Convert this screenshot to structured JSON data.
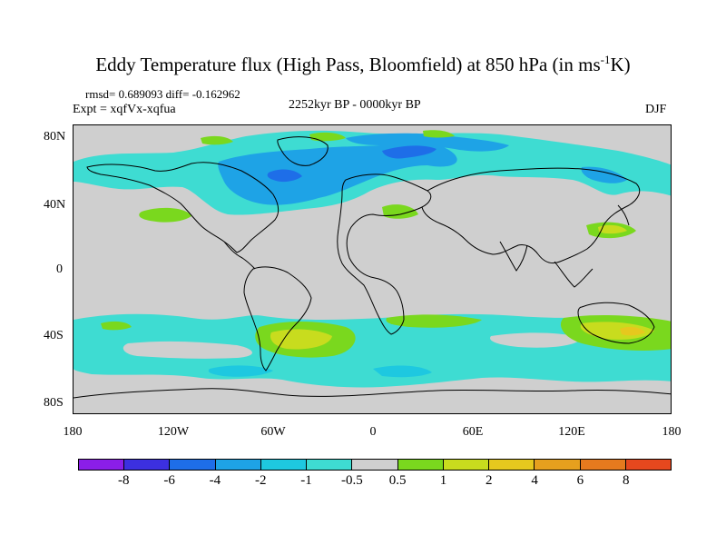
{
  "title_main": "Eddy Temperature flux (High Pass, Bloomfield) at 850 hPa (in ms",
  "title_sup": "-1",
  "title_end": "K)",
  "stats_line": "rmsd= 0.689093 diff= -0.162962",
  "expt_line": "Expt = xqfVx-xqfua",
  "period": "2252kyr BP - 0000kyr BP",
  "season": "DJF",
  "lat_labels": [
    "80N",
    "40N",
    "0",
    "40S",
    "80S"
  ],
  "lon_labels": [
    "180",
    "120W",
    "60W",
    "0",
    "60E",
    "120E",
    "180"
  ],
  "colorbar": {
    "colors": [
      "#8b1ee8",
      "#3c30e0",
      "#1e6ee8",
      "#1ea3e6",
      "#1ec8e0",
      "#3edcd2",
      "#cfcfcf",
      "#7ad81e",
      "#c8dc1e",
      "#e6c81e",
      "#e6a01e",
      "#e67a1e",
      "#e6481e"
    ],
    "labels": [
      "-8",
      "-6",
      "-4",
      "-2",
      "-1",
      "-0.5",
      "0.5",
      "1",
      "2",
      "4",
      "6",
      "8"
    ]
  },
  "colors": {
    "background_zero": "#cfcfcf",
    "light_cyan": "#3edcd2",
    "cyan": "#1ec8e0",
    "sky_blue": "#1ea3e6",
    "blue": "#1e6ee8",
    "green": "#7ad81e",
    "yellow_green": "#c8dc1e",
    "orange": "#e6c81e"
  }
}
